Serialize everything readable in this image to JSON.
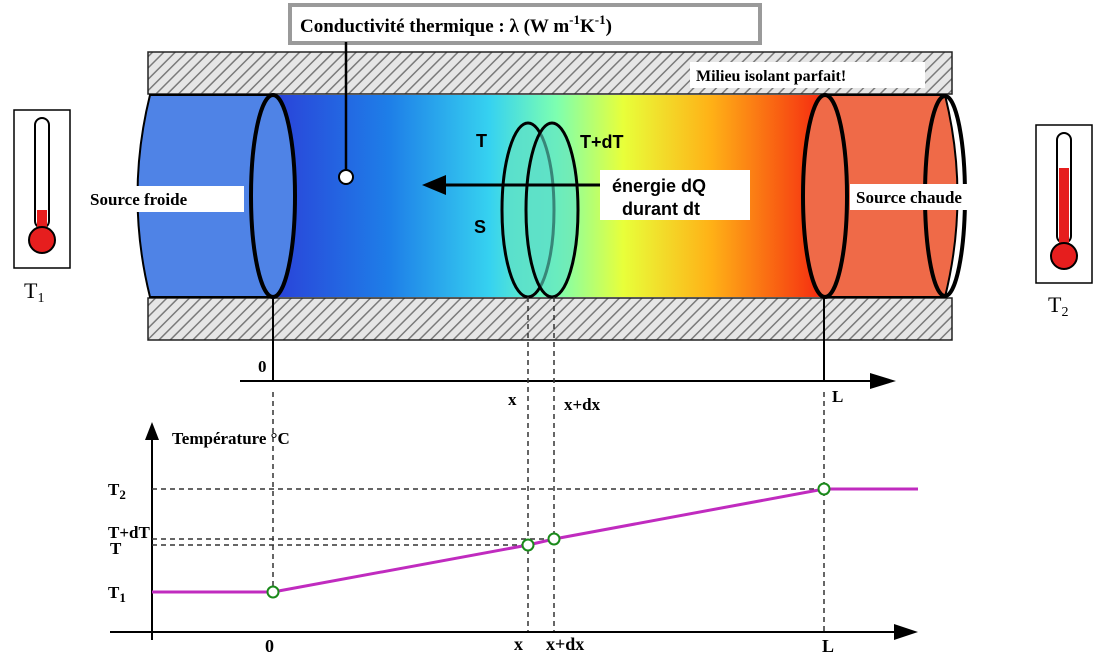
{
  "colors": {
    "cold_source": "#4f83e6",
    "hot_source": "#ef6a48",
    "temperature_line": "#c02bbf",
    "point_fill": "#ffffff",
    "point_stroke": "#1a8a1a",
    "insulator_hatch": "#777777",
    "thermometer_red": "#e61e1e"
  },
  "icons": {
    "thermometer_cold": "thermometer-icon",
    "thermometer_hot": "thermometer-icon"
  },
  "header": {
    "conductivity_text": "Conductivité thermique : λ (W m",
    "conductivity_exp1": "-1",
    "conductivity_mid": "K",
    "conductivity_exp2": "-1",
    "conductivity_close": ")"
  },
  "labels": {
    "insulator": "Milieu isolant parfait!",
    "cold_source": "Source froide",
    "hot_source": "Source chaude",
    "slice_T": "T",
    "slice_TdT": "T+dT",
    "slice_S": "S",
    "energy_line1": "énergie dQ",
    "energy_line2": "durant dt",
    "thermo_cold": "T",
    "thermo_cold_sub": "1",
    "thermo_hot": "T",
    "thermo_hot_sub": "2"
  },
  "position_axis": {
    "origin": "0",
    "x": "x",
    "x_dx": "x+dx",
    "L": "L"
  },
  "chart_data": {
    "type": "line",
    "ylabel": "Température °C",
    "x_ticks": [
      "0",
      "x",
      "x+dx",
      "L"
    ],
    "y_ticks": [
      "T1",
      "T",
      "T+dT",
      "T2"
    ],
    "series": [
      {
        "points": [
          {
            "x": "0",
            "y": "T1"
          },
          {
            "x": "x",
            "y": "T"
          },
          {
            "x": "x+dx",
            "y": "T+dT"
          },
          {
            "x": "L",
            "y": "T2"
          }
        ]
      }
    ]
  }
}
